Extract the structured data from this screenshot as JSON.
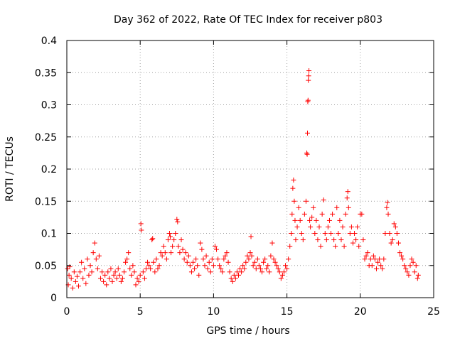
{
  "chart_data": {
    "type": "scatter",
    "title": "Day 362 of 2022, Rate Of TEC Index for receiver p803",
    "xlabel": "GPS time / hours",
    "ylabel": "ROTI / TECUs",
    "xlim": [
      0,
      25
    ],
    "ylim": [
      0,
      0.4
    ],
    "xticks": [
      0,
      5,
      10,
      15,
      20,
      25
    ],
    "xtick_labels": [
      "0",
      "5",
      "10",
      "15",
      "20",
      "25"
    ],
    "yticks": [
      0,
      0.05,
      0.1,
      0.15,
      0.2,
      0.25,
      0.3,
      0.35,
      0.4
    ],
    "ytick_labels": [
      "0",
      "0.05",
      "0.1",
      "0.15",
      "0.2",
      "0.25",
      "0.3",
      "0.35",
      "0.4"
    ],
    "grid": true,
    "marker": "+",
    "color": "#ff0000",
    "series": [
      {
        "name": "ROTI",
        "points": [
          [
            0.05,
            0.045
          ],
          [
            0.1,
            0.02
          ],
          [
            0.15,
            0.035
          ],
          [
            0.2,
            0.048
          ],
          [
            0.3,
            0.03
          ],
          [
            0.4,
            0.015
          ],
          [
            0.5,
            0.04
          ],
          [
            0.6,
            0.025
          ],
          [
            0.7,
            0.033
          ],
          [
            0.8,
            0.018
          ],
          [
            0.9,
            0.04
          ],
          [
            1.0,
            0.055
          ],
          [
            1.1,
            0.03
          ],
          [
            1.2,
            0.045
          ],
          [
            1.3,
            0.022
          ],
          [
            1.4,
            0.06
          ],
          [
            1.5,
            0.035
          ],
          [
            1.6,
            0.05
          ],
          [
            1.7,
            0.04
          ],
          [
            1.8,
            0.07
          ],
          [
            1.9,
            0.085
          ],
          [
            2.0,
            0.06
          ],
          [
            2.1,
            0.045
          ],
          [
            2.2,
            0.065
          ],
          [
            2.3,
            0.03
          ],
          [
            2.4,
            0.04
          ],
          [
            2.5,
            0.025
          ],
          [
            2.6,
            0.035
          ],
          [
            2.7,
            0.02
          ],
          [
            2.8,
            0.04
          ],
          [
            2.9,
            0.03
          ],
          [
            3.0,
            0.045
          ],
          [
            3.1,
            0.025
          ],
          [
            3.2,
            0.035
          ],
          [
            3.3,
            0.04
          ],
          [
            3.4,
            0.03
          ],
          [
            3.5,
            0.045
          ],
          [
            3.6,
            0.035
          ],
          [
            3.7,
            0.025
          ],
          [
            3.8,
            0.03
          ],
          [
            3.9,
            0.04
          ],
          [
            4.0,
            0.055
          ],
          [
            4.1,
            0.06
          ],
          [
            4.2,
            0.07
          ],
          [
            4.3,
            0.045
          ],
          [
            4.4,
            0.035
          ],
          [
            4.5,
            0.05
          ],
          [
            4.6,
            0.04
          ],
          [
            4.7,
            0.02
          ],
          [
            4.8,
            0.03
          ],
          [
            4.9,
            0.025
          ],
          [
            5.0,
            0.035
          ],
          [
            5.05,
            0.115
          ],
          [
            5.08,
            0.105
          ],
          [
            5.2,
            0.04
          ],
          [
            5.3,
            0.03
          ],
          [
            5.4,
            0.045
          ],
          [
            5.5,
            0.055
          ],
          [
            5.6,
            0.05
          ],
          [
            5.7,
            0.045
          ],
          [
            5.8,
            0.09
          ],
          [
            5.85,
            0.092
          ],
          [
            5.9,
            0.055
          ],
          [
            6.0,
            0.04
          ],
          [
            6.1,
            0.06
          ],
          [
            6.2,
            0.045
          ],
          [
            6.3,
            0.05
          ],
          [
            6.4,
            0.07
          ],
          [
            6.5,
            0.065
          ],
          [
            6.6,
            0.08
          ],
          [
            6.7,
            0.07
          ],
          [
            6.8,
            0.06
          ],
          [
            6.9,
            0.09
          ],
          [
            7.0,
            0.1
          ],
          [
            7.05,
            0.095
          ],
          [
            7.1,
            0.07
          ],
          [
            7.2,
            0.08
          ],
          [
            7.3,
            0.09
          ],
          [
            7.4,
            0.1
          ],
          [
            7.5,
            0.122
          ],
          [
            7.55,
            0.118
          ],
          [
            7.6,
            0.08
          ],
          [
            7.7,
            0.07
          ],
          [
            7.8,
            0.09
          ],
          [
            7.9,
            0.075
          ],
          [
            8.0,
            0.06
          ],
          [
            8.1,
            0.07
          ],
          [
            8.2,
            0.055
          ],
          [
            8.3,
            0.065
          ],
          [
            8.4,
            0.05
          ],
          [
            8.5,
            0.04
          ],
          [
            8.6,
            0.055
          ],
          [
            8.7,
            0.045
          ],
          [
            8.8,
            0.06
          ],
          [
            8.9,
            0.05
          ],
          [
            9.0,
            0.035
          ],
          [
            9.1,
            0.085
          ],
          [
            9.2,
            0.075
          ],
          [
            9.3,
            0.06
          ],
          [
            9.4,
            0.05
          ],
          [
            9.5,
            0.065
          ],
          [
            9.6,
            0.045
          ],
          [
            9.7,
            0.055
          ],
          [
            9.8,
            0.04
          ],
          [
            9.9,
            0.06
          ],
          [
            10.0,
            0.05
          ],
          [
            10.1,
            0.08
          ],
          [
            10.2,
            0.075
          ],
          [
            10.3,
            0.06
          ],
          [
            10.4,
            0.05
          ],
          [
            10.5,
            0.045
          ],
          [
            10.6,
            0.04
          ],
          [
            10.7,
            0.06
          ],
          [
            10.8,
            0.065
          ],
          [
            10.9,
            0.07
          ],
          [
            11.0,
            0.055
          ],
          [
            11.1,
            0.04
          ],
          [
            11.2,
            0.03
          ],
          [
            11.3,
            0.025
          ],
          [
            11.4,
            0.035
          ],
          [
            11.5,
            0.03
          ],
          [
            11.6,
            0.04
          ],
          [
            11.7,
            0.035
          ],
          [
            11.8,
            0.045
          ],
          [
            11.9,
            0.04
          ],
          [
            12.0,
            0.05
          ],
          [
            12.1,
            0.045
          ],
          [
            12.2,
            0.055
          ],
          [
            12.3,
            0.065
          ],
          [
            12.4,
            0.06
          ],
          [
            12.5,
            0.07
          ],
          [
            12.55,
            0.095
          ],
          [
            12.6,
            0.065
          ],
          [
            12.7,
            0.05
          ],
          [
            12.8,
            0.055
          ],
          [
            12.9,
            0.045
          ],
          [
            13.0,
            0.06
          ],
          [
            13.1,
            0.05
          ],
          [
            13.2,
            0.045
          ],
          [
            13.3,
            0.04
          ],
          [
            13.4,
            0.055
          ],
          [
            13.5,
            0.06
          ],
          [
            13.6,
            0.045
          ],
          [
            13.7,
            0.05
          ],
          [
            13.8,
            0.04
          ],
          [
            13.9,
            0.065
          ],
          [
            14.0,
            0.085
          ],
          [
            14.1,
            0.06
          ],
          [
            14.2,
            0.055
          ],
          [
            14.3,
            0.05
          ],
          [
            14.4,
            0.045
          ],
          [
            14.5,
            0.04
          ],
          [
            14.6,
            0.03
          ],
          [
            14.7,
            0.035
          ],
          [
            14.8,
            0.04
          ],
          [
            14.9,
            0.05
          ],
          [
            15.0,
            0.045
          ],
          [
            15.1,
            0.06
          ],
          [
            15.2,
            0.08
          ],
          [
            15.3,
            0.1
          ],
          [
            15.35,
            0.13
          ],
          [
            15.4,
            0.17
          ],
          [
            15.45,
            0.183
          ],
          [
            15.5,
            0.15
          ],
          [
            15.55,
            0.12
          ],
          [
            15.6,
            0.09
          ],
          [
            15.7,
            0.11
          ],
          [
            15.8,
            0.14
          ],
          [
            15.9,
            0.12
          ],
          [
            16.0,
            0.1
          ],
          [
            16.1,
            0.09
          ],
          [
            16.2,
            0.13
          ],
          [
            16.3,
            0.15
          ],
          [
            16.35,
            0.225
          ],
          [
            16.38,
            0.223
          ],
          [
            16.4,
            0.256
          ],
          [
            16.42,
            0.305
          ],
          [
            16.44,
            0.307
          ],
          [
            16.46,
            0.338
          ],
          [
            16.48,
            0.345
          ],
          [
            16.5,
            0.353
          ],
          [
            16.55,
            0.12
          ],
          [
            16.6,
            0.11
          ],
          [
            16.7,
            0.125
          ],
          [
            16.8,
            0.14
          ],
          [
            16.9,
            0.1
          ],
          [
            17.0,
            0.12
          ],
          [
            17.1,
            0.09
          ],
          [
            17.2,
            0.11
          ],
          [
            17.3,
            0.08
          ],
          [
            17.4,
            0.13
          ],
          [
            17.5,
            0.152
          ],
          [
            17.6,
            0.1
          ],
          [
            17.7,
            0.09
          ],
          [
            17.8,
            0.11
          ],
          [
            17.9,
            0.12
          ],
          [
            18.0,
            0.1
          ],
          [
            18.1,
            0.13
          ],
          [
            18.2,
            0.09
          ],
          [
            18.3,
            0.08
          ],
          [
            18.4,
            0.14
          ],
          [
            18.5,
            0.1
          ],
          [
            18.6,
            0.12
          ],
          [
            18.7,
            0.09
          ],
          [
            18.8,
            0.11
          ],
          [
            18.9,
            0.08
          ],
          [
            19.0,
            0.13
          ],
          [
            19.1,
            0.155
          ],
          [
            19.15,
            0.165
          ],
          [
            19.2,
            0.14
          ],
          [
            19.3,
            0.1
          ],
          [
            19.4,
            0.11
          ],
          [
            19.5,
            0.085
          ],
          [
            19.6,
            0.1
          ],
          [
            19.7,
            0.09
          ],
          [
            19.8,
            0.11
          ],
          [
            19.9,
            0.08
          ],
          [
            20.0,
            0.13
          ],
          [
            20.1,
            0.13
          ],
          [
            20.2,
            0.09
          ],
          [
            20.3,
            0.06
          ],
          [
            20.4,
            0.065
          ],
          [
            20.5,
            0.07
          ],
          [
            20.6,
            0.05
          ],
          [
            20.7,
            0.06
          ],
          [
            20.8,
            0.05
          ],
          [
            20.9,
            0.065
          ],
          [
            21.0,
            0.06
          ],
          [
            21.1,
            0.045
          ],
          [
            21.2,
            0.055
          ],
          [
            21.3,
            0.06
          ],
          [
            21.4,
            0.05
          ],
          [
            21.5,
            0.045
          ],
          [
            21.6,
            0.06
          ],
          [
            21.7,
            0.1
          ],
          [
            21.8,
            0.14
          ],
          [
            21.85,
            0.148
          ],
          [
            21.9,
            0.13
          ],
          [
            22.0,
            0.1
          ],
          [
            22.1,
            0.085
          ],
          [
            22.2,
            0.09
          ],
          [
            22.3,
            0.115
          ],
          [
            22.4,
            0.11
          ],
          [
            22.5,
            0.1
          ],
          [
            22.6,
            0.085
          ],
          [
            22.7,
            0.07
          ],
          [
            22.8,
            0.065
          ],
          [
            22.9,
            0.06
          ],
          [
            23.0,
            0.05
          ],
          [
            23.1,
            0.045
          ],
          [
            23.2,
            0.04
          ],
          [
            23.3,
            0.035
          ],
          [
            23.4,
            0.05
          ],
          [
            23.5,
            0.06
          ],
          [
            23.6,
            0.055
          ],
          [
            23.7,
            0.04
          ],
          [
            23.8,
            0.05
          ],
          [
            23.9,
            0.03
          ],
          [
            23.95,
            0.035
          ]
        ]
      }
    ]
  }
}
